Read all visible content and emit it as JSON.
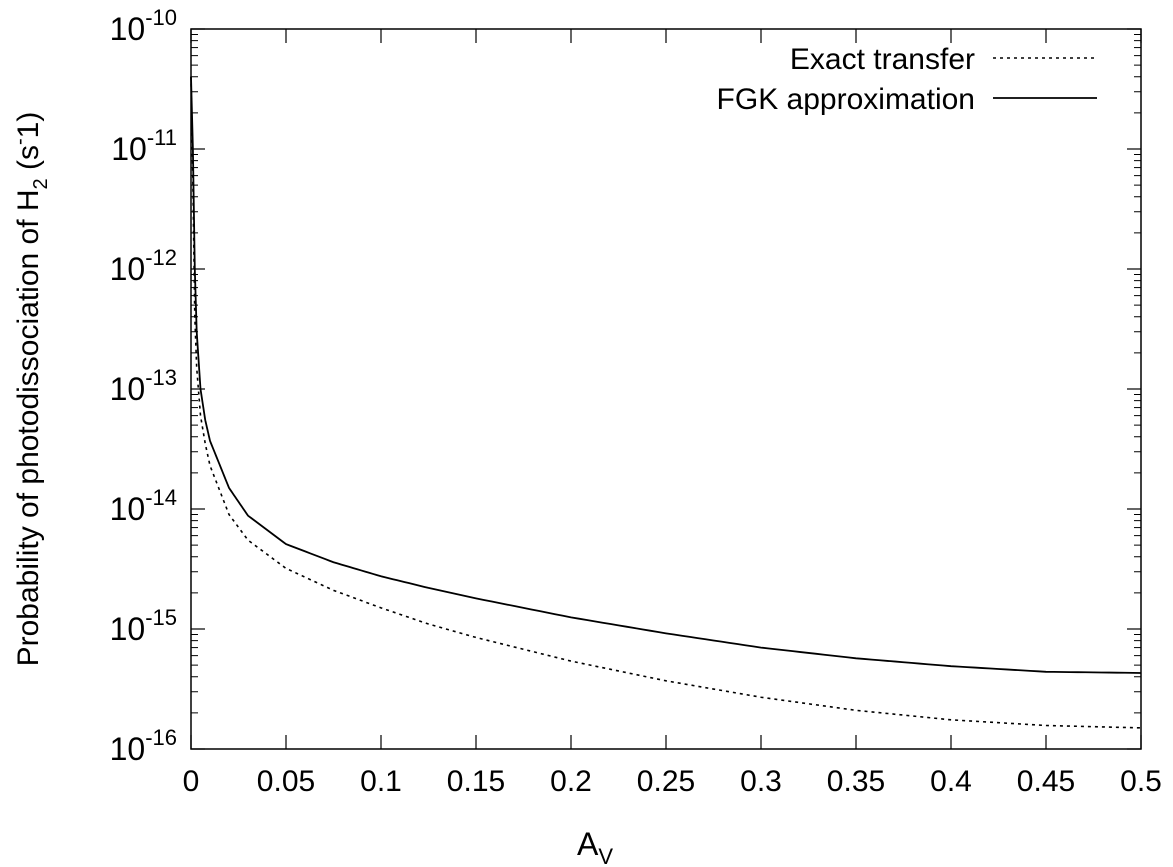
{
  "chart_data": {
    "type": "line",
    "xlabel": "A",
    "xlabel_sub": "V",
    "ylabel_pre": "Probability of photodissociation of H",
    "ylabel_sub": "2",
    "ylabel_post": " (s",
    "ylabel_sup": "-",
    "ylabel_end": "1)",
    "x_scale": "linear",
    "y_scale": "log",
    "xlim": [
      0,
      0.5
    ],
    "ylim": [
      1e-16,
      1e-10
    ],
    "x_ticks": [
      "0",
      "0.05",
      "0.1",
      "0.15",
      "0.2",
      "0.25",
      "0.3",
      "0.35",
      "0.4",
      "0.45",
      "0.5"
    ],
    "y_ticks": [
      {
        "base": "10",
        "exp": "-16"
      },
      {
        "base": "10",
        "exp": "-15"
      },
      {
        "base": "10",
        "exp": "-14"
      },
      {
        "base": "10",
        "exp": "-13"
      },
      {
        "base": "10",
        "exp": "-12"
      },
      {
        "base": "10",
        "exp": "-11"
      },
      {
        "base": "10",
        "exp": "-10"
      }
    ],
    "grid": false,
    "legend_position": "top-right",
    "series": [
      {
        "name": "Exact transfer",
        "style": "dotted",
        "color": "#000000",
        "x": [
          0,
          0.001,
          0.002,
          0.003,
          0.005,
          0.0075,
          0.01,
          0.02,
          0.03,
          0.05,
          0.075,
          0.1,
          0.125,
          0.15,
          0.2,
          0.25,
          0.3,
          0.35,
          0.4,
          0.45,
          0.5
        ],
        "y": [
          4e-11,
          5e-12,
          4e-13,
          1.5e-13,
          6e-14,
          3.5e-14,
          2.3e-14,
          9e-15,
          5.5e-15,
          3.2e-15,
          2.1e-15,
          1.5e-15,
          1.1e-15,
          8.5e-16,
          5.4e-16,
          3.7e-16,
          2.7e-16,
          2.1e-16,
          1.75e-16,
          1.57e-16,
          1.5e-16
        ]
      },
      {
        "name": "FGK approximation",
        "style": "solid",
        "color": "#000000",
        "x": [
          0,
          0.001,
          0.002,
          0.003,
          0.005,
          0.0075,
          0.01,
          0.02,
          0.03,
          0.05,
          0.075,
          0.1,
          0.125,
          0.15,
          0.2,
          0.25,
          0.3,
          0.35,
          0.4,
          0.45,
          0.5
        ],
        "y": [
          4e-11,
          1e-11,
          1e-12,
          3e-13,
          1e-13,
          5.5e-14,
          3.7e-14,
          1.5e-14,
          8.8e-15,
          5.1e-15,
          3.6e-15,
          2.75e-15,
          2.2e-15,
          1.8e-15,
          1.25e-15,
          9.2e-16,
          7e-16,
          5.7e-16,
          4.9e-16,
          4.4e-16,
          4.3e-16
        ]
      }
    ]
  }
}
